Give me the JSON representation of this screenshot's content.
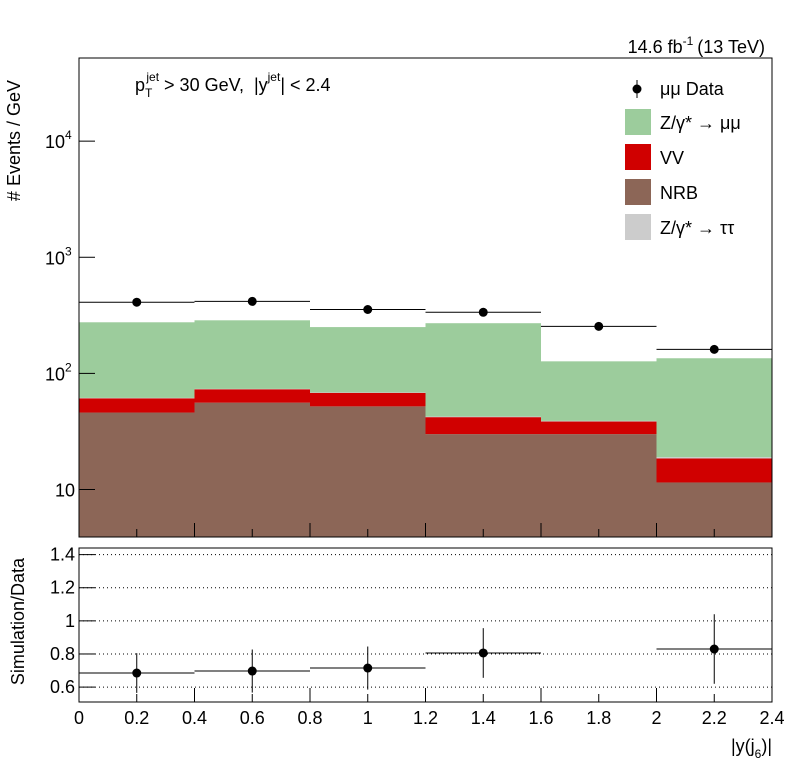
{
  "chart_data": [
    {
      "type": "histogram",
      "stacked": true,
      "log_y": true,
      "lumi": "14.6 fb",
      "lumi_exponent": "-1",
      "lumi_energy": "(13 TeV)",
      "cut_p": "p",
      "cut_p_sub": "T",
      "cut_p_sup": "jet",
      "cut_mid": " > 30 GeV,  |y",
      "cut_y_sup": "jet",
      "cut_end": "| < 2.4",
      "ylabel": "# Events / GeV",
      "bins": [
        0,
        0.4,
        0.8,
        1.2,
        1.6,
        2.0,
        2.4
      ],
      "xlim": [
        0,
        2.4
      ],
      "ylim": [
        3.9,
        52000
      ],
      "yticks": [
        10,
        {
          "value": 100,
          "label": "10",
          "exponent": "2"
        },
        {
          "value": 1000,
          "label": "10",
          "exponent": "3"
        },
        {
          "value": 10000,
          "label": "10",
          "exponent": "4"
        }
      ],
      "data": {
        "name": "μμ Data",
        "color": "#000000",
        "x": [
          0.2,
          0.6,
          1.0,
          1.4,
          1.8,
          2.2
        ],
        "values": [
          410,
          417,
          355,
          336,
          254,
          161
        ]
      },
      "series": [
        {
          "name": "Z/γ* → μμ",
          "color": "#9ccc9c",
          "values": [
            214,
            213,
            182,
            228,
            88,
            116
          ]
        },
        {
          "name": "VV",
          "color": "#d00000",
          "values": [
            15,
            17,
            16,
            12,
            8.5,
            7
          ]
        },
        {
          "name": "NRB",
          "color": "#8c6657",
          "values": [
            46,
            56,
            52,
            30,
            30,
            11.5
          ]
        },
        {
          "name": "Z/γ* → ττ",
          "color": "#cccccc",
          "values": [
            0.5,
            0.5,
            0.5,
            0.5,
            0.5,
            0.5
          ]
        }
      ]
    },
    {
      "type": "ratio",
      "ylabel": "Simulation/Data",
      "xlabel": "|y(j",
      "xlabel_sub": "6",
      "xlabel_end": ")|",
      "x": [
        0.2,
        0.6,
        1.0,
        1.4,
        1.8,
        2.2
      ],
      "values": [
        0.685,
        0.697,
        0.715,
        0.806,
        null,
        0.83
      ],
      "errors": [
        0.12,
        0.13,
        0.13,
        0.15,
        null,
        0.21
      ],
      "xlim": [
        0,
        2.4
      ],
      "xticks": [
        0,
        0.2,
        0.4,
        0.6,
        0.8,
        1,
        1.2,
        1.4,
        1.6,
        1.8,
        2,
        2.2,
        2.4
      ],
      "ylim": [
        0.51,
        1.44
      ],
      "yticks": [
        0.6,
        0.8,
        1,
        1.2,
        1.4
      ],
      "grid": true
    }
  ]
}
